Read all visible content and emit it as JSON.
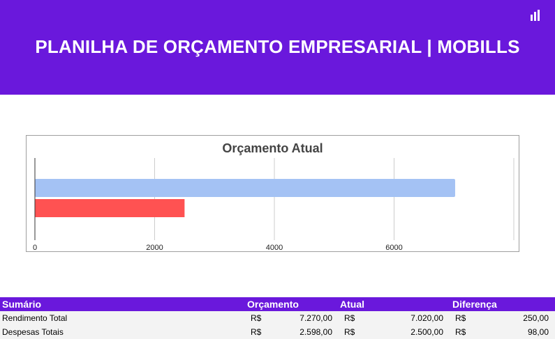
{
  "header": {
    "title": "PLANILHA DE ORÇAMENTO EMPRESARIAL | MOBILLS",
    "logo_icon": "bar-chart-icon",
    "background": "#6a18dc"
  },
  "chart_data": {
    "type": "bar",
    "orientation": "horizontal",
    "title": "Orçamento Atual",
    "xlabel": "",
    "ylabel": "",
    "xlim": [
      0,
      8000
    ],
    "x_ticks": [
      "0",
      "2000",
      "4000",
      "6000"
    ],
    "grid": true,
    "legend": "none",
    "series": [
      {
        "values": [
          7020
        ],
        "color": "#a4c2f4"
      },
      {
        "values": [
          2500
        ],
        "color": "#ff5252"
      }
    ]
  },
  "table": {
    "headers": {
      "summary": "Sumário",
      "budget": "Orçamento",
      "actual": "Atual",
      "difference": "Diferença"
    },
    "rows": [
      {
        "label": "Rendimento Total",
        "budget_currency": "R$",
        "budget": "7.270,00",
        "actual_currency": "R$",
        "actual": "7.020,00",
        "difference_currency": "R$",
        "difference": "250,00"
      },
      {
        "label": "Despesas Totais",
        "budget_currency": "R$",
        "budget": "2.598,00",
        "actual_currency": "R$",
        "actual": "2.500,00",
        "difference_currency": "R$",
        "difference": "98,00"
      }
    ]
  }
}
